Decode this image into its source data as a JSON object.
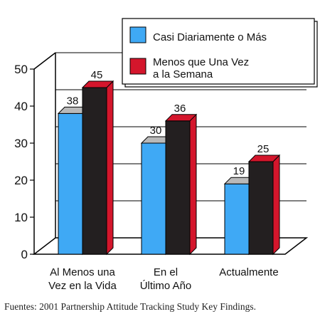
{
  "chart_data": {
    "type": "bar",
    "categories": [
      [
        "Al Menos una",
        "Vez en la Vida"
      ],
      [
        "En el",
        "Último Año"
      ],
      [
        "Actualmente"
      ]
    ],
    "series": [
      {
        "name": [
          "Casi Diariamente o Más"
        ],
        "values": [
          38,
          30,
          19
        ],
        "color": "#3fa9f5"
      },
      {
        "name": [
          "Menos que Una Vez",
          "a la Semana"
        ],
        "values": [
          45,
          36,
          25
        ],
        "color": "#d4162c"
      }
    ],
    "yticks": [
      "0",
      "10",
      "20",
      "30",
      "40",
      "50"
    ],
    "ylim": [
      0,
      50
    ],
    "grid": true,
    "legend": "top-right",
    "style": "3d",
    "source": "Fuentes: 2001 Partnership Attitude Tracking Study Key Findings."
  }
}
